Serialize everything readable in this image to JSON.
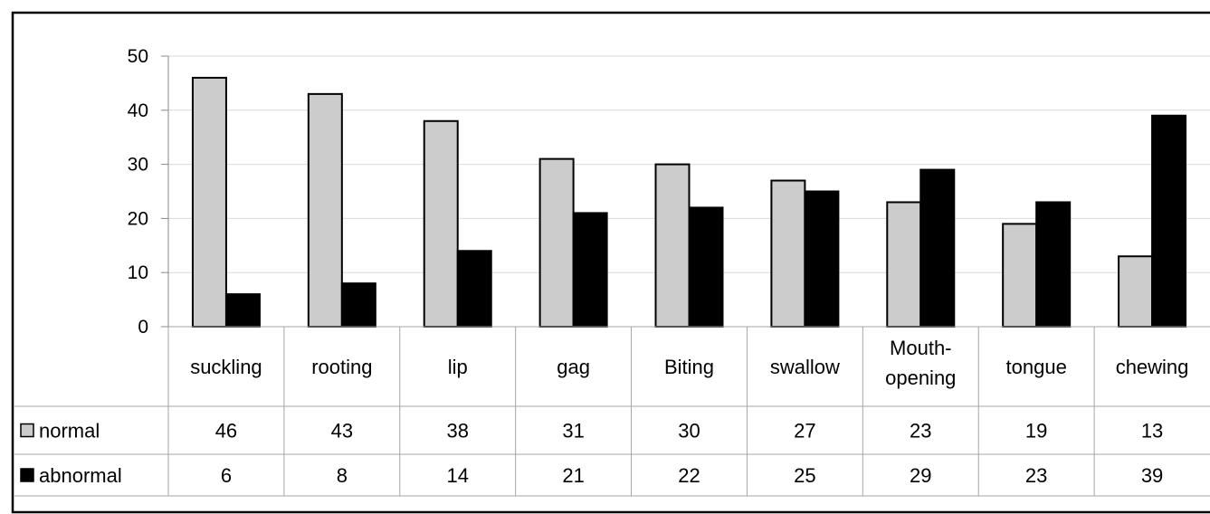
{
  "chart_data": {
    "type": "bar",
    "title": "",
    "xlabel": "",
    "ylabel": "",
    "ylim": [
      0,
      50
    ],
    "yticks": [
      0,
      10,
      20,
      30,
      40,
      50
    ],
    "grid": true,
    "legend_placement": "data-table-left",
    "categories": [
      [
        "suckling"
      ],
      [
        "rooting"
      ],
      [
        "lip"
      ],
      [
        "gag"
      ],
      [
        "Biting"
      ],
      [
        "swallow"
      ],
      [
        "Mouth-",
        "opening"
      ],
      [
        "tongue"
      ],
      [
        "chewing"
      ]
    ],
    "series": [
      {
        "name": "normal",
        "color": "#cccccc",
        "values": [
          46,
          43,
          38,
          31,
          30,
          27,
          23,
          19,
          13
        ]
      },
      {
        "name": "abnormal",
        "color": "#000000",
        "values": [
          6,
          8,
          14,
          21,
          22,
          25,
          29,
          23,
          39
        ]
      }
    ]
  }
}
